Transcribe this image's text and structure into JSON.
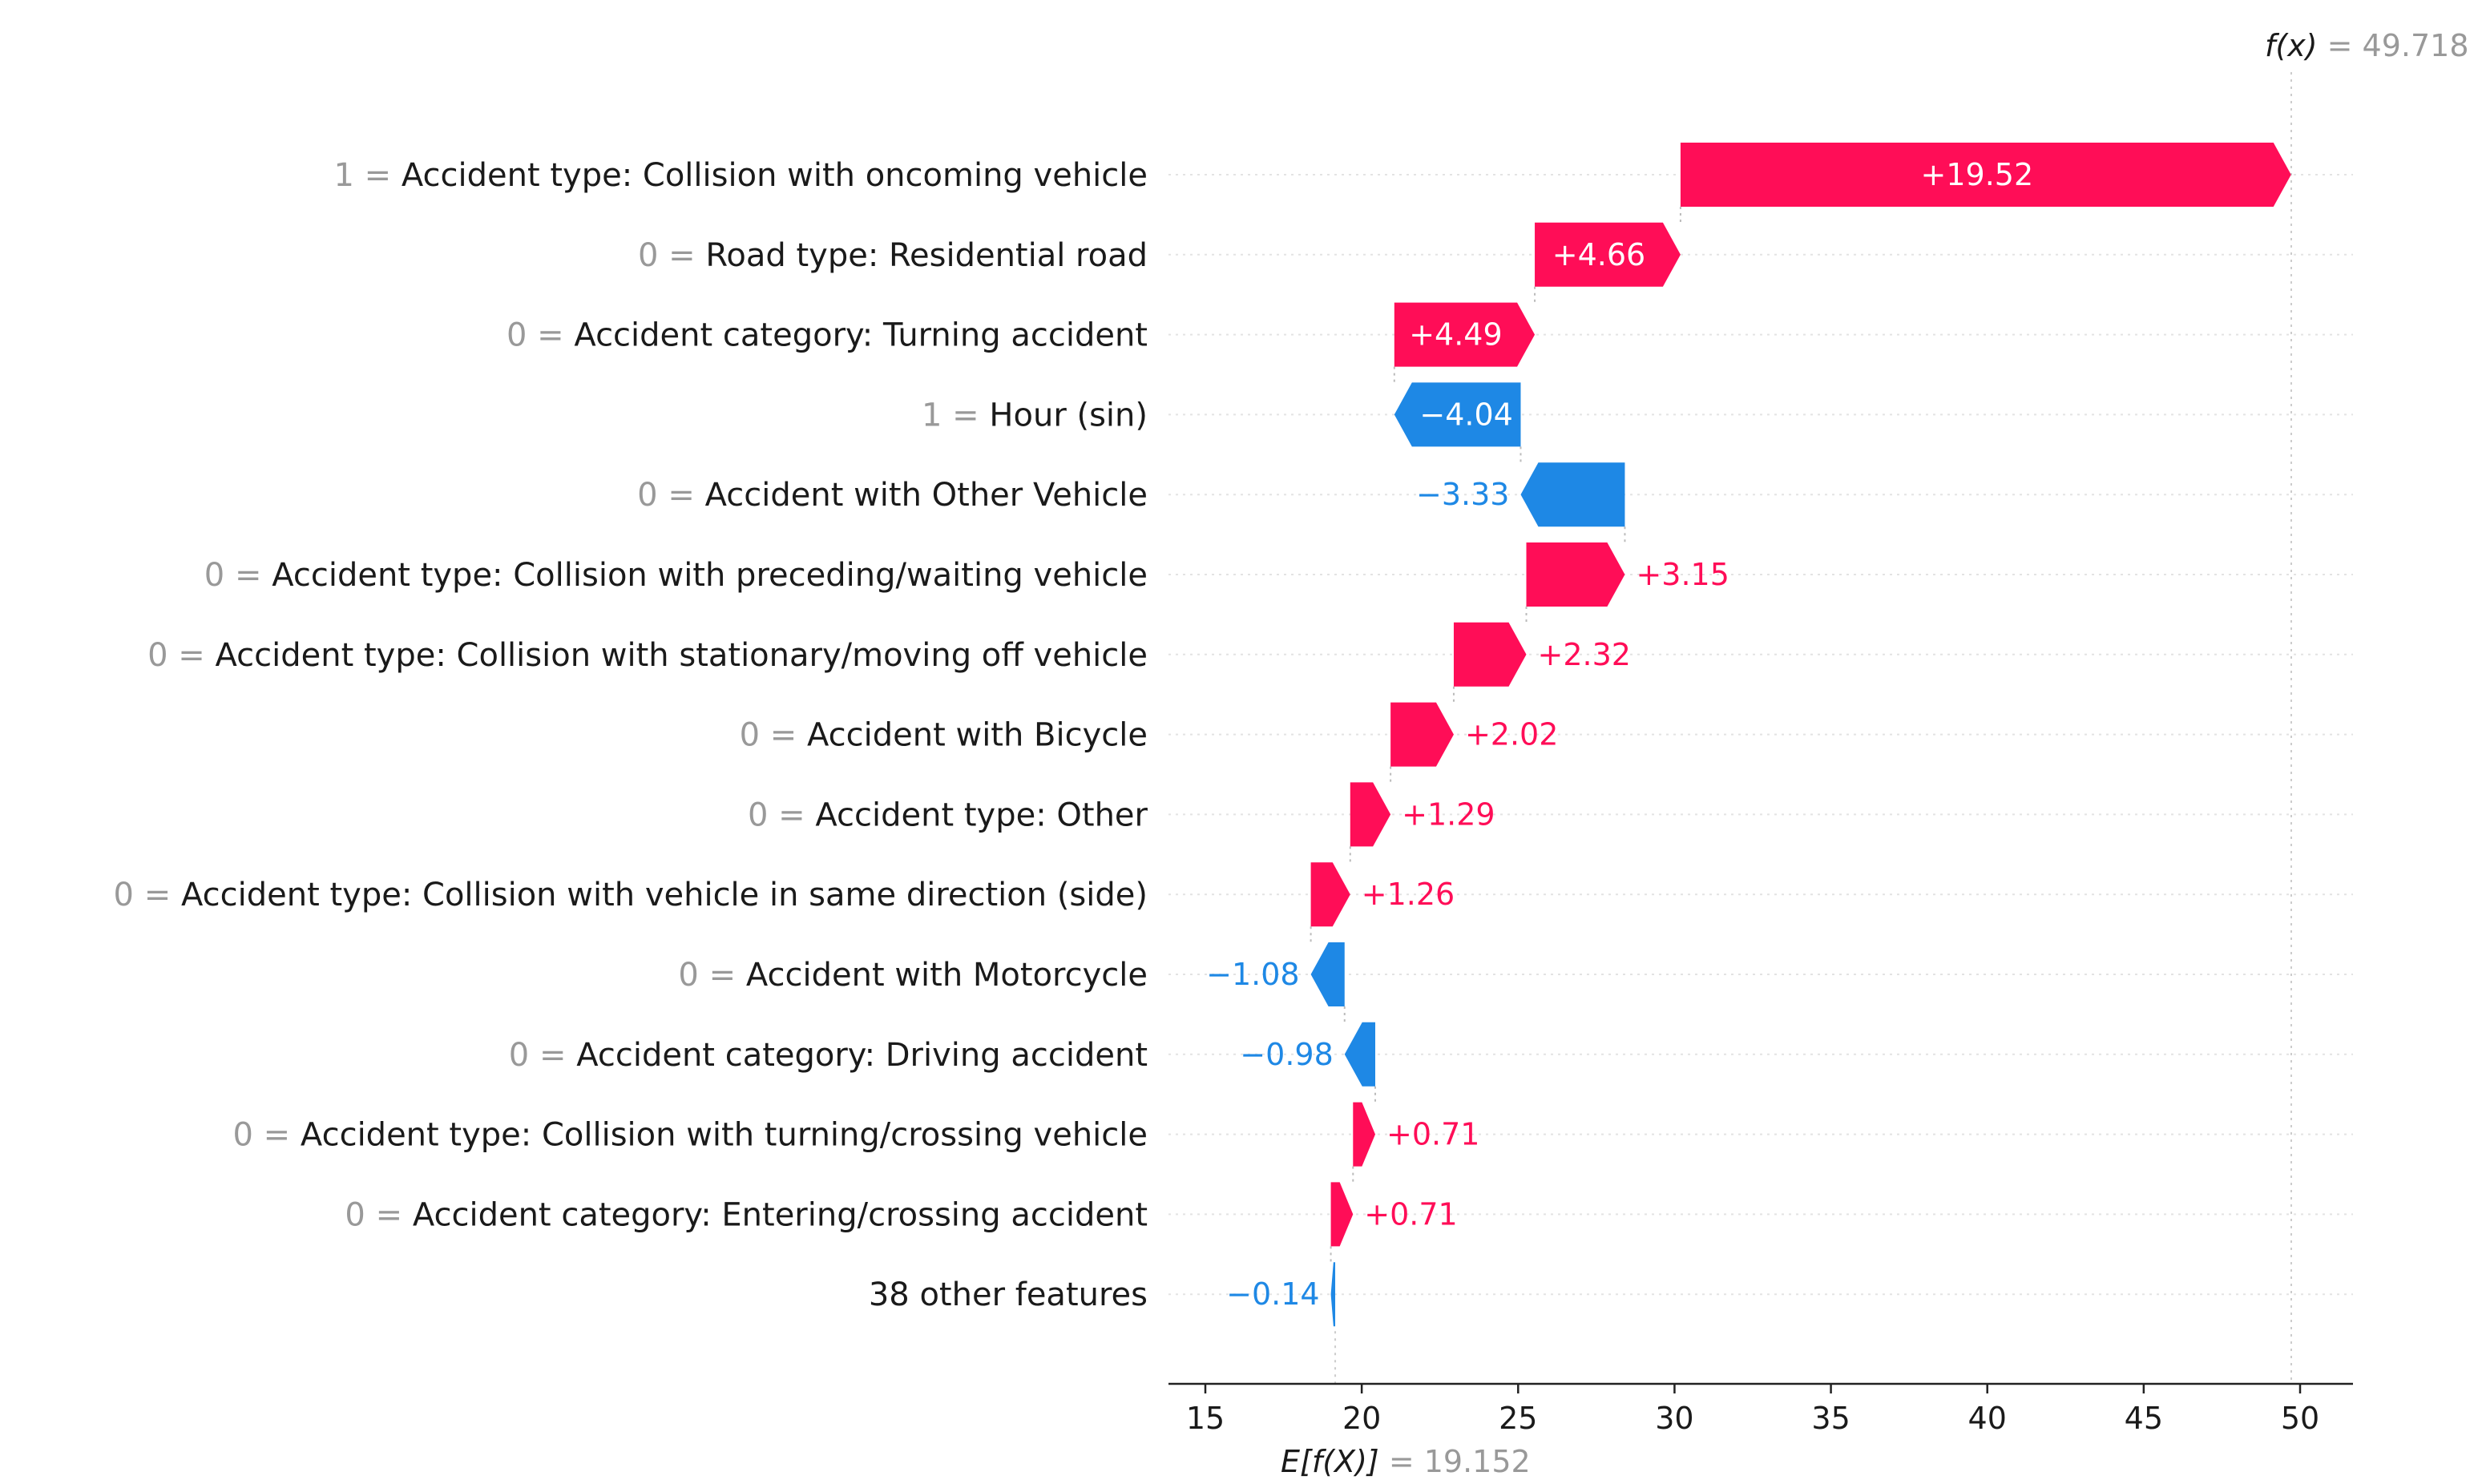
{
  "chart_data": {
    "type": "waterfall",
    "title": "",
    "base_value": 19.152,
    "base_value_label": "E[f(X)]",
    "base_value_text": "= 19.152",
    "output_value": 49.718,
    "output_value_label": "f(x)",
    "output_value_text": "= 49.718",
    "xlim": [
      14,
      52
    ],
    "xticks": [
      15,
      20,
      25,
      30,
      35,
      40,
      45,
      50
    ],
    "xtick_labels": [
      "15",
      "20",
      "25",
      "30",
      "35",
      "40",
      "45",
      "50"
    ],
    "features": [
      {
        "value_text": "1",
        "name": "Accident type: Collision with oncoming vehicle",
        "shap": 19.52,
        "label": "+19.52"
      },
      {
        "value_text": "0",
        "name": "Road type: Residential road",
        "shap": 4.66,
        "label": "+4.66"
      },
      {
        "value_text": "0",
        "name": "Accident category: Turning accident",
        "shap": 4.49,
        "label": "+4.49"
      },
      {
        "value_text": "1",
        "name": "Hour (sin)",
        "shap": -4.04,
        "label": "−4.04"
      },
      {
        "value_text": "0",
        "name": "Accident with Other Vehicle",
        "shap": -3.33,
        "label": "−3.33"
      },
      {
        "value_text": "0",
        "name": "Accident type: Collision with preceding/waiting vehicle",
        "shap": 3.15,
        "label": "+3.15"
      },
      {
        "value_text": "0",
        "name": "Accident type: Collision with stationary/moving off vehicle",
        "shap": 2.32,
        "label": "+2.32"
      },
      {
        "value_text": "0",
        "name": "Accident with Bicycle",
        "shap": 2.02,
        "label": "+2.02"
      },
      {
        "value_text": "0",
        "name": "Accident type: Other",
        "shap": 1.29,
        "label": "+1.29"
      },
      {
        "value_text": "0",
        "name": "Accident type: Collision with vehicle in same direction (side)",
        "shap": 1.26,
        "label": "+1.26"
      },
      {
        "value_text": "0",
        "name": "Accident with Motorcycle",
        "shap": -1.08,
        "label": "−1.08"
      },
      {
        "value_text": "0",
        "name": "Accident category: Driving accident",
        "shap": -0.98,
        "label": "−0.98"
      },
      {
        "value_text": "0",
        "name": "Accident type: Collision with turning/crossing vehicle",
        "shap": 0.71,
        "label": "+0.71"
      },
      {
        "value_text": "0",
        "name": "Accident category: Entering/crossing accident",
        "shap": 0.71,
        "label": "+0.71"
      },
      {
        "value_text": "",
        "name": "38 other features",
        "shap": -0.14,
        "label": "−0.14"
      }
    ],
    "colors": {
      "positive": "#ff0d57",
      "negative": "#1e88e5",
      "bar_text": "#ffffff"
    }
  }
}
